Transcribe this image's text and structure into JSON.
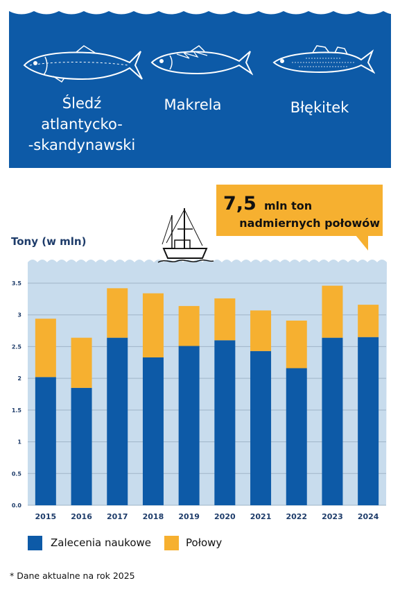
{
  "banner": {
    "background": "#0d5aa7",
    "fish": [
      {
        "name": "sledz-icon",
        "label": "Śledź\natlantycko-\n-skandynawski"
      },
      {
        "name": "makrela-icon",
        "label": "Makrela"
      },
      {
        "name": "blekitek-icon",
        "label": "Błękitek"
      }
    ]
  },
  "callout": {
    "big": "7,5",
    "unit": "mln ton",
    "line2": "nadmiernych połowów",
    "color": "#f6b030"
  },
  "footnote": "* Dane aktualne na rok 2025",
  "colors": {
    "recommendation": "#0d5aa7",
    "catch": "#f6b030",
    "plot_bg": "#c8dced"
  },
  "chart_data": {
    "type": "bar",
    "stacked": true,
    "ylabel": "Tony (w mln)",
    "categories": [
      "2015",
      "2016",
      "2017",
      "2018",
      "2019",
      "2020",
      "2021",
      "2022",
      "2023",
      "2024"
    ],
    "series": [
      {
        "name": "Zalecenia naukowe",
        "values": [
          2.02,
          1.85,
          2.64,
          2.33,
          2.51,
          2.6,
          2.43,
          2.16,
          2.64,
          2.65
        ]
      },
      {
        "name": "Połowy",
        "values": [
          0.92,
          0.79,
          0.78,
          1.01,
          0.63,
          0.66,
          0.64,
          0.75,
          0.82,
          0.51
        ]
      }
    ],
    "yticks": [
      "0.0",
      "0.5",
      "1",
      "1.5",
      "2",
      "2.5",
      "3",
      "3.5"
    ],
    "ylim": [
      0,
      3.5
    ],
    "grid": true,
    "legend": "bottom-left"
  }
}
